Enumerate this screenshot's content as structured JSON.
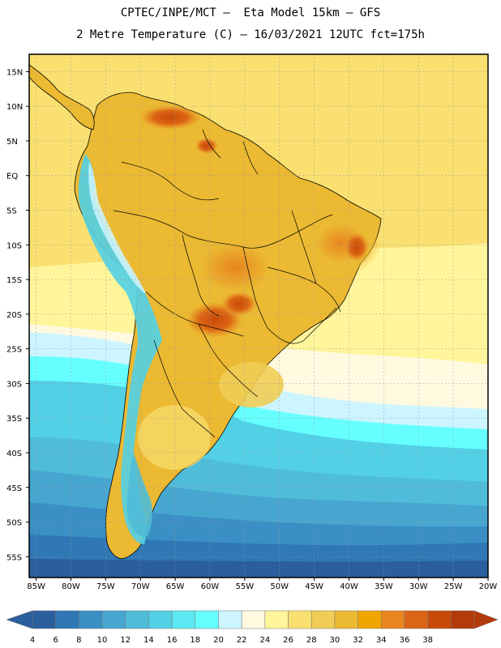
{
  "header": {
    "line1": "CPTEC/INPE/MCT –  Eta Model 15km – GFS",
    "line2": "2 Metre Temperature (C) – 16/03/2021 12UTC fct=175h"
  },
  "axes": {
    "lat_labels": [
      "15N",
      "10N",
      "5N",
      "EQ",
      "5S",
      "10S",
      "15S",
      "20S",
      "25S",
      "30S",
      "35S",
      "40S",
      "45S",
      "50S",
      "55S"
    ],
    "lat_values": [
      15,
      10,
      5,
      0,
      -5,
      -10,
      -15,
      -20,
      -25,
      -30,
      -35,
      -40,
      -45,
      -50,
      -55
    ],
    "lon_labels": [
      "85W",
      "80W",
      "75W",
      "70W",
      "65W",
      "60W",
      "55W",
      "50W",
      "45W",
      "40W",
      "35W",
      "30W",
      "25W",
      "20W"
    ],
    "lon_values": [
      -85,
      -80,
      -75,
      -70,
      -65,
      -60,
      -55,
      -50,
      -45,
      -40,
      -35,
      -30,
      -25,
      -20
    ],
    "lat_range": [
      -58,
      17.5
    ],
    "lon_range": [
      -86,
      -20
    ]
  },
  "legend": {
    "labels": [
      "4",
      "6",
      "8",
      "10",
      "12",
      "14",
      "16",
      "18",
      "20",
      "22",
      "24",
      "26",
      "28",
      "30",
      "32",
      "34",
      "36",
      "38"
    ],
    "colors": [
      "#2b5e9c",
      "#2f77b5",
      "#3a8fc4",
      "#47a6d0",
      "#4fbcd9",
      "#52d0e6",
      "#5ce8f2",
      "#66ffff",
      "#ccf5ff",
      "#fff9e0",
      "#fff59a",
      "#f9e070",
      "#f0cd55",
      "#ebb932",
      "#f0a500",
      "#e8851e",
      "#dc6514",
      "#c84a08",
      "#b33a0a"
    ],
    "low_color": "#2b5e9c",
    "high_color": "#b33a0a"
  }
}
